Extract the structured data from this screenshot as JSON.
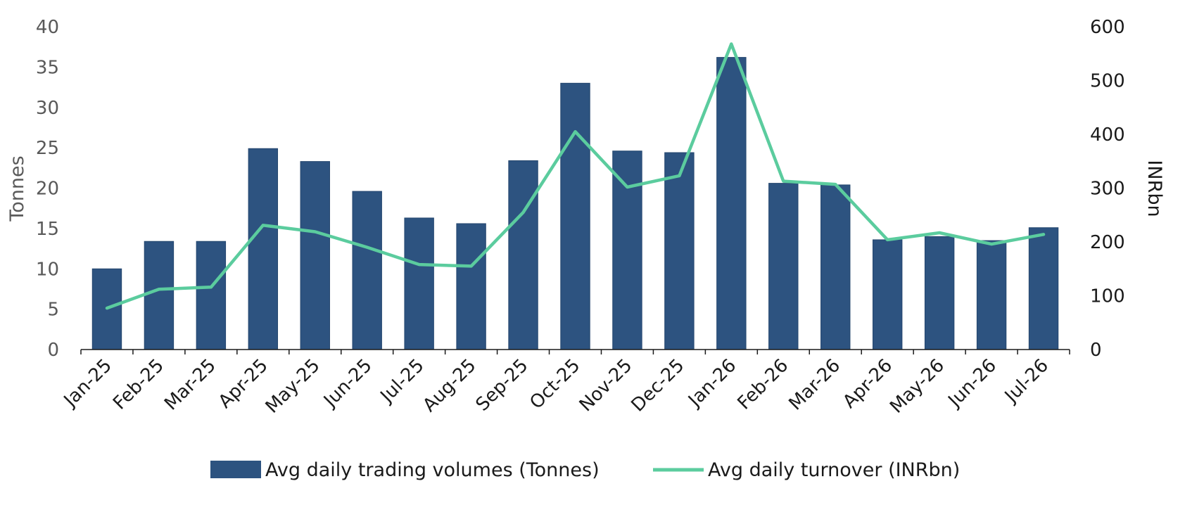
{
  "chart_data": {
    "type": "bar",
    "categories": [
      "Jan-25",
      "Feb-25",
      "Mar-25",
      "Apr-25",
      "May-25",
      "Jun-25",
      "Jul-25",
      "Aug-25",
      "Sep-25",
      "Oct-25",
      "Nov-25",
      "Dec-25",
      "Jan-26",
      "Feb-26",
      "Mar-26",
      "Apr-26",
      "May-26",
      "Jun-26",
      "Jul-26"
    ],
    "series": [
      {
        "name": "Avg daily trading volumes (Tonnes)",
        "type": "bar",
        "axis": "left",
        "color": "#2d5380",
        "values": [
          10.0,
          13.4,
          13.4,
          24.9,
          23.3,
          19.6,
          16.3,
          15.6,
          23.4,
          33.0,
          24.6,
          24.4,
          36.2,
          20.6,
          20.4,
          13.6,
          14.0,
          13.5,
          15.1
        ]
      },
      {
        "name": "Avg daily turnover (INRbn)",
        "type": "line",
        "axis": "right",
        "color": "#5bcc9e",
        "values": [
          77,
          112,
          116,
          231,
          219,
          190,
          158,
          155,
          255,
          405,
          302,
          323,
          568,
          313,
          307,
          204,
          217,
          196,
          214
        ]
      }
    ],
    "ylabel": "Tonnes",
    "y2label": "INRbn",
    "ylim": [
      0,
      40
    ],
    "y2lim": [
      0,
      600
    ],
    "yticks": [
      "0",
      "5",
      "10",
      "15",
      "20",
      "25",
      "30",
      "35",
      "40"
    ],
    "y2ticks": [
      "0",
      "100",
      "200",
      "300",
      "400",
      "500",
      "600"
    ],
    "grid": false,
    "legend_position": "bottom"
  }
}
